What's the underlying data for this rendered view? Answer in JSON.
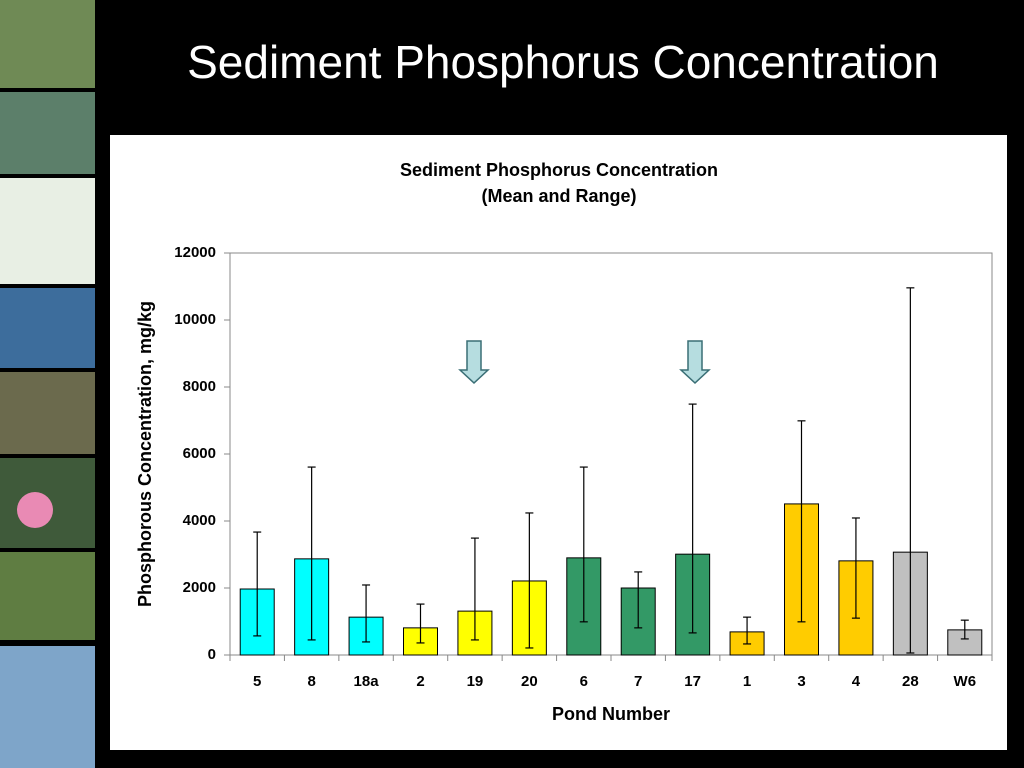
{
  "slide": {
    "title": "Sediment Phosphorus Concentration"
  },
  "chart_data": {
    "type": "bar",
    "title": "Sediment Phosphorus Concentration",
    "subtitle": "(Mean and Range)",
    "x_label": "Pond Number",
    "y_label": "Phosphorous Concentration, mg/kg",
    "categories": [
      "5",
      "8",
      "18a",
      "2",
      "19",
      "20",
      "6",
      "7",
      "17",
      "1",
      "3",
      "4",
      "28",
      "W6"
    ],
    "values": [
      1970,
      2870,
      1130,
      810,
      1310,
      2210,
      2900,
      2000,
      3010,
      690,
      4510,
      2810,
      3070,
      750
    ],
    "min": [
      570,
      450,
      390,
      360,
      450,
      210,
      990,
      810,
      660,
      330,
      990,
      1100,
      60,
      480
    ],
    "max": [
      3670,
      5610,
      2090,
      1520,
      3490,
      4240,
      5610,
      2480,
      7490,
      1130,
      6990,
      4090,
      10960,
      1040
    ],
    "colors": [
      "#00ffff",
      "#00ffff",
      "#00ffff",
      "#ffff00",
      "#ffff00",
      "#ffff00",
      "#339966",
      "#339966",
      "#339966",
      "#ffcc00",
      "#ffcc00",
      "#ffcc00",
      "#c0c0c0",
      "#c0c0c0"
    ],
    "ylim": [
      0,
      12000
    ],
    "yticks": [
      0,
      2000,
      4000,
      6000,
      8000,
      10000,
      12000
    ],
    "grid": false
  }
}
